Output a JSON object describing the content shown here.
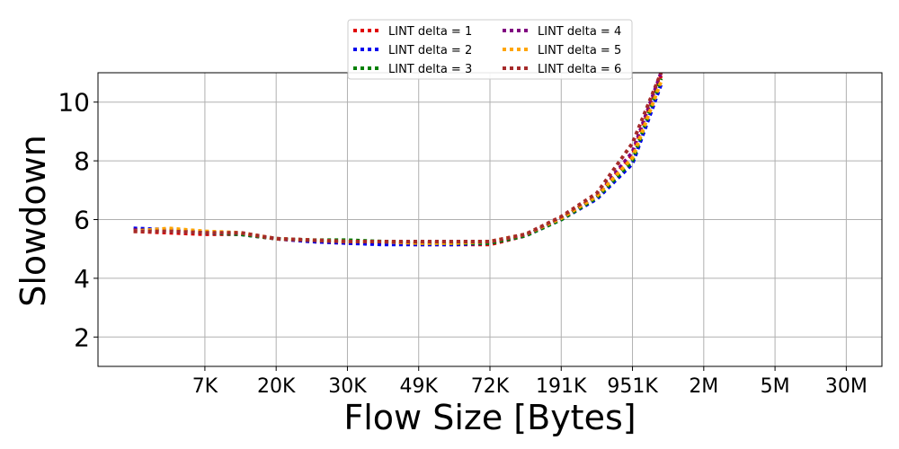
{
  "chart_data": {
    "type": "line",
    "title": "",
    "xlabel": "Flow Size [Bytes]",
    "ylabel": "Slowdown",
    "x_scale": "categorical-percentile",
    "x_tick_labels": [
      "7K",
      "20K",
      "30K",
      "49K",
      "72K",
      "191K",
      "951K",
      "2M",
      "5M",
      "30M"
    ],
    "x_tick_positions": [
      1,
      2,
      3,
      4,
      5,
      6,
      7,
      8,
      9,
      10
    ],
    "xlim": [
      -0.5,
      10.5
    ],
    "y_ticks": [
      2,
      4,
      6,
      8,
      10
    ],
    "ylim": [
      1,
      11
    ],
    "grid": true,
    "legend_position": "top-center",
    "legend_columns": 2,
    "line_style": "dotted",
    "series": [
      {
        "name": "LINT delta = 1",
        "color": "#e00000",
        "x": [
          0,
          0.5,
          1,
          1.5,
          2,
          2.5,
          3,
          3.5,
          4,
          4.5,
          5,
          5.5,
          6,
          6.5,
          7,
          7.4
        ],
        "values": [
          5.6,
          5.55,
          5.5,
          5.5,
          5.35,
          5.25,
          5.2,
          5.2,
          5.15,
          5.15,
          5.15,
          5.45,
          6.05,
          6.8,
          8.2,
          10.9
        ]
      },
      {
        "name": "LINT delta = 2",
        "color": "#0000ee",
        "x": [
          0,
          0.5,
          1,
          1.5,
          2,
          2.5,
          3,
          3.5,
          4,
          4.5,
          5,
          5.5,
          6,
          6.5,
          7,
          7.4
        ],
        "values": [
          5.7,
          5.65,
          5.55,
          5.5,
          5.35,
          5.25,
          5.2,
          5.15,
          5.15,
          5.15,
          5.2,
          5.45,
          6.0,
          6.7,
          7.9,
          10.6
        ]
      },
      {
        "name": "LINT delta = 3",
        "color": "#008000",
        "x": [
          0,
          0.5,
          1,
          1.5,
          2,
          2.5,
          3,
          3.5,
          4,
          4.5,
          5,
          5.5,
          6,
          6.5,
          7,
          7.4
        ],
        "values": [
          5.65,
          5.6,
          5.55,
          5.5,
          5.35,
          5.3,
          5.3,
          5.25,
          5.2,
          5.2,
          5.2,
          5.45,
          6.0,
          6.75,
          8.0,
          10.8
        ]
      },
      {
        "name": "LINT delta = 4",
        "color": "#800080",
        "x": [
          0,
          0.5,
          1,
          1.5,
          2,
          2.5,
          3,
          3.5,
          4,
          4.5,
          5,
          5.5,
          6,
          6.5,
          7,
          7.4
        ],
        "values": [
          5.65,
          5.6,
          5.55,
          5.55,
          5.35,
          5.3,
          5.25,
          5.25,
          5.2,
          5.25,
          5.25,
          5.5,
          6.05,
          6.8,
          8.3,
          11.0
        ]
      },
      {
        "name": "LINT delta = 5",
        "color": "#ffa500",
        "x": [
          0,
          0.5,
          1,
          1.5,
          2,
          2.5,
          3,
          3.5,
          4,
          4.5,
          5,
          5.5,
          6,
          6.5,
          7,
          7.4
        ],
        "values": [
          5.6,
          5.7,
          5.6,
          5.55,
          5.35,
          5.3,
          5.25,
          5.25,
          5.2,
          5.2,
          5.25,
          5.5,
          6.05,
          6.8,
          8.1,
          10.7
        ]
      },
      {
        "name": "LINT delta = 6",
        "color": "#a52a2a",
        "x": [
          0,
          0.5,
          1,
          1.5,
          2,
          2.5,
          3,
          3.5,
          4,
          4.5,
          5,
          5.5,
          6,
          6.5,
          7,
          7.4
        ],
        "values": [
          5.6,
          5.6,
          5.55,
          5.55,
          5.35,
          5.3,
          5.25,
          5.25,
          5.25,
          5.25,
          5.25,
          5.5,
          6.1,
          6.9,
          8.6,
          11.0
        ]
      }
    ]
  }
}
